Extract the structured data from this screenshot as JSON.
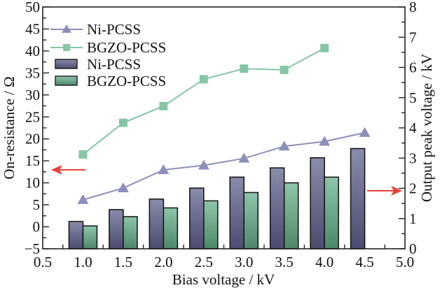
{
  "chart_data": {
    "type": "bar+line",
    "title": "",
    "xlabel": "Bias voltage / kV",
    "ylabel_left": "On-resistance / Ω",
    "ylabel_right": "Output peak voltage / kV",
    "xlim": [
      0.5,
      5.0
    ],
    "ylim_left": [
      -5,
      50
    ],
    "ylim_right": [
      0,
      8
    ],
    "x_ticks": [
      "0.5",
      "1.0",
      "1.5",
      "2.0",
      "2.5",
      "3.0",
      "3.5",
      "4.0",
      "4.5",
      "5.0"
    ],
    "y_left_ticks": [
      "−5",
      "0",
      "5",
      "10",
      "15",
      "20",
      "25",
      "30",
      "35",
      "40",
      "45",
      "50"
    ],
    "y_right_ticks": [
      "0",
      "1",
      "2",
      "3",
      "4",
      "5",
      "6",
      "7",
      "8"
    ],
    "grid": false,
    "legend_position": "top-left",
    "bar_series": [
      {
        "name": "Ni-PCSS",
        "axis": "left",
        "x": [
          1.0,
          1.5,
          2.0,
          2.5,
          3.0,
          3.5,
          4.0,
          4.5
        ],
        "values": [
          1.2,
          3.9,
          6.3,
          8.8,
          11.3,
          13.4,
          15.7,
          17.8
        ],
        "color_top": "#8a8cab",
        "color_bottom": "#4c4b70"
      },
      {
        "name": "BGZO-PCSS",
        "axis": "left",
        "x": [
          1.0,
          1.5,
          2.0,
          2.5,
          3.0,
          3.5,
          4.0
        ],
        "values": [
          0.2,
          2.3,
          4.3,
          5.9,
          7.8,
          10.0,
          11.3
        ],
        "color_top": "#8ec6aa",
        "color_bottom": "#4d876a"
      }
    ],
    "line_series": [
      {
        "name": "Ni-PCSS",
        "axis": "right",
        "marker": "triangle",
        "x": [
          1.0,
          1.5,
          2.0,
          2.5,
          3.0,
          3.5,
          4.0,
          4.5
        ],
        "values": [
          1.62,
          2.01,
          2.61,
          2.76,
          2.99,
          3.39,
          3.55,
          3.84
        ],
        "color": "#8c8fba"
      },
      {
        "name": "BGZO-PCSS",
        "axis": "right",
        "marker": "square",
        "x": [
          1.0,
          1.5,
          2.0,
          2.5,
          3.0,
          3.5,
          4.0
        ],
        "values": [
          3.12,
          4.17,
          4.72,
          5.61,
          5.96,
          5.92,
          6.64
        ],
        "color": "#86c6a6"
      }
    ],
    "legend": [
      {
        "label": "Ni-PCSS",
        "kind": "line",
        "series": "line_series.0"
      },
      {
        "label": "BGZO-PCSS",
        "kind": "line",
        "series": "line_series.1"
      },
      {
        "label": "Ni-PCSS",
        "kind": "bar",
        "series": "bar_series.0"
      },
      {
        "label": "BGZO-PCSS",
        "kind": "bar",
        "series": "bar_series.1"
      }
    ],
    "annotations": [
      {
        "type": "arrow",
        "direction": "left",
        "meaning": "line points to left axis",
        "color": "#e8403a"
      },
      {
        "type": "arrow",
        "direction": "right",
        "meaning": "line points to right axis",
        "color": "#e8403a"
      }
    ]
  }
}
